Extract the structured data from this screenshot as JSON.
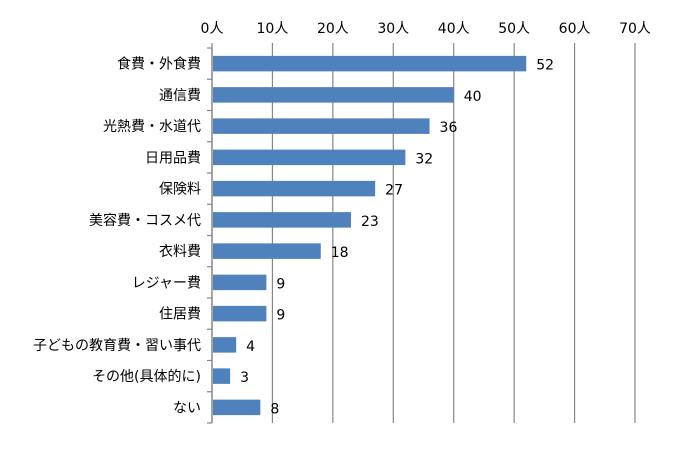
{
  "chart_data": {
    "type": "bar",
    "orientation": "horizontal",
    "categories": [
      "食費・外食費",
      "通信費",
      "光熱費・水道代",
      "日用品費",
      "保険料",
      "美容費・コスメ代",
      "衣料費",
      "レジャー費",
      "住居費",
      "子どもの教育費・習い事代",
      "その他(具体的に)",
      "ない"
    ],
    "values": [
      52,
      40,
      36,
      32,
      27,
      23,
      18,
      9,
      9,
      4,
      3,
      8
    ],
    "data_labels": [
      "52",
      "40",
      "36",
      "32",
      "27",
      "23",
      "18",
      "9",
      "9",
      "4",
      "3",
      "8"
    ],
    "xlim": [
      0,
      70
    ],
    "x_ticks": [
      "0人",
      "10人",
      "20人",
      "30人",
      "40人",
      "50人",
      "60人",
      "70人"
    ],
    "x_axis_position": "top",
    "grid": true,
    "bar_color": "#4F81BD",
    "grid_color": "#868686"
  }
}
